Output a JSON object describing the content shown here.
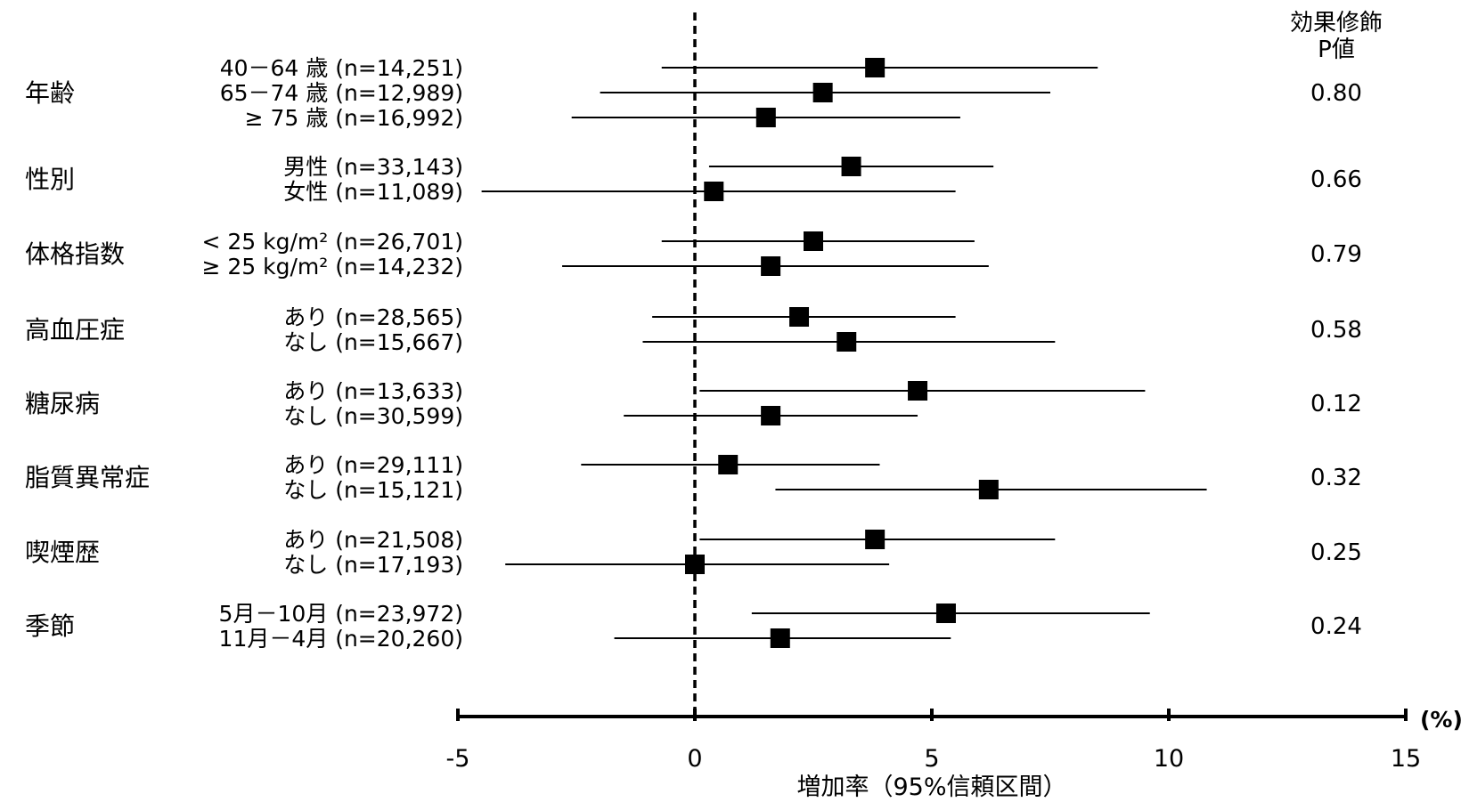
{
  "chart_data": {
    "type": "forest",
    "xlabel": "増加率（95%信頼区間）",
    "unit": "(%)",
    "xlim": [
      -5,
      15
    ],
    "xticks": [
      -5,
      0,
      5,
      10,
      15
    ],
    "reference_line": 0,
    "pvalue_header": [
      "効果修飾",
      "P値"
    ],
    "groups": [
      {
        "name": "年齢",
        "p": "0.80",
        "rows": [
          {
            "label": "40－64 歳 (n=14,251)",
            "est": 3.8,
            "lo": -0.7,
            "hi": 8.5
          },
          {
            "label": "65－74 歳 (n=12,989)",
            "est": 2.7,
            "lo": -2.0,
            "hi": 7.5
          },
          {
            "label": "≥ 75 歳 (n=16,992)",
            "est": 1.5,
            "lo": -2.6,
            "hi": 5.6
          }
        ]
      },
      {
        "name": "性別",
        "p": "0.66",
        "rows": [
          {
            "label": "男性 (n=33,143)",
            "est": 3.3,
            "lo": 0.3,
            "hi": 6.3
          },
          {
            "label": "女性 (n=11,089)",
            "est": 0.4,
            "lo": -4.5,
            "hi": 5.5
          }
        ]
      },
      {
        "name": "体格指数",
        "p": "0.79",
        "rows": [
          {
            "label": "< 25 kg/m² (n=26,701)",
            "est": 2.5,
            "lo": -0.7,
            "hi": 5.9
          },
          {
            "label": "≥ 25 kg/m² (n=14,232)",
            "est": 1.6,
            "lo": -2.8,
            "hi": 6.2
          }
        ]
      },
      {
        "name": "高血圧症",
        "p": "0.58",
        "rows": [
          {
            "label": "あり (n=28,565)",
            "est": 2.2,
            "lo": -0.9,
            "hi": 5.5
          },
          {
            "label": "なし (n=15,667)",
            "est": 3.2,
            "lo": -1.1,
            "hi": 7.6
          }
        ]
      },
      {
        "name": "糖尿病",
        "p": "0.12",
        "rows": [
          {
            "label": "あり (n=13,633)",
            "est": 4.7,
            "lo": 0.1,
            "hi": 9.5
          },
          {
            "label": "なし (n=30,599)",
            "est": 1.6,
            "lo": -1.5,
            "hi": 4.7
          }
        ]
      },
      {
        "name": "脂質異常症",
        "p": "0.32",
        "rows": [
          {
            "label": "あり (n=29,111)",
            "est": 0.7,
            "lo": -2.4,
            "hi": 3.9
          },
          {
            "label": "なし (n=15,121)",
            "est": 6.2,
            "lo": 1.7,
            "hi": 10.8
          }
        ]
      },
      {
        "name": "喫煙歴",
        "p": "0.25",
        "rows": [
          {
            "label": "あり (n=21,508)",
            "est": 3.8,
            "lo": 0.1,
            "hi": 7.6
          },
          {
            "label": "なし (n=17,193)",
            "est": 0.0,
            "lo": -4.0,
            "hi": 4.1
          }
        ]
      },
      {
        "name": "季節",
        "p": "0.24",
        "rows": [
          {
            "label": "5月－10月 (n=23,972)",
            "est": 5.3,
            "lo": 1.2,
            "hi": 9.6
          },
          {
            "label": "11月－4月 (n=20,260)",
            "est": 1.8,
            "lo": -1.7,
            "hi": 5.4
          }
        ]
      }
    ]
  }
}
